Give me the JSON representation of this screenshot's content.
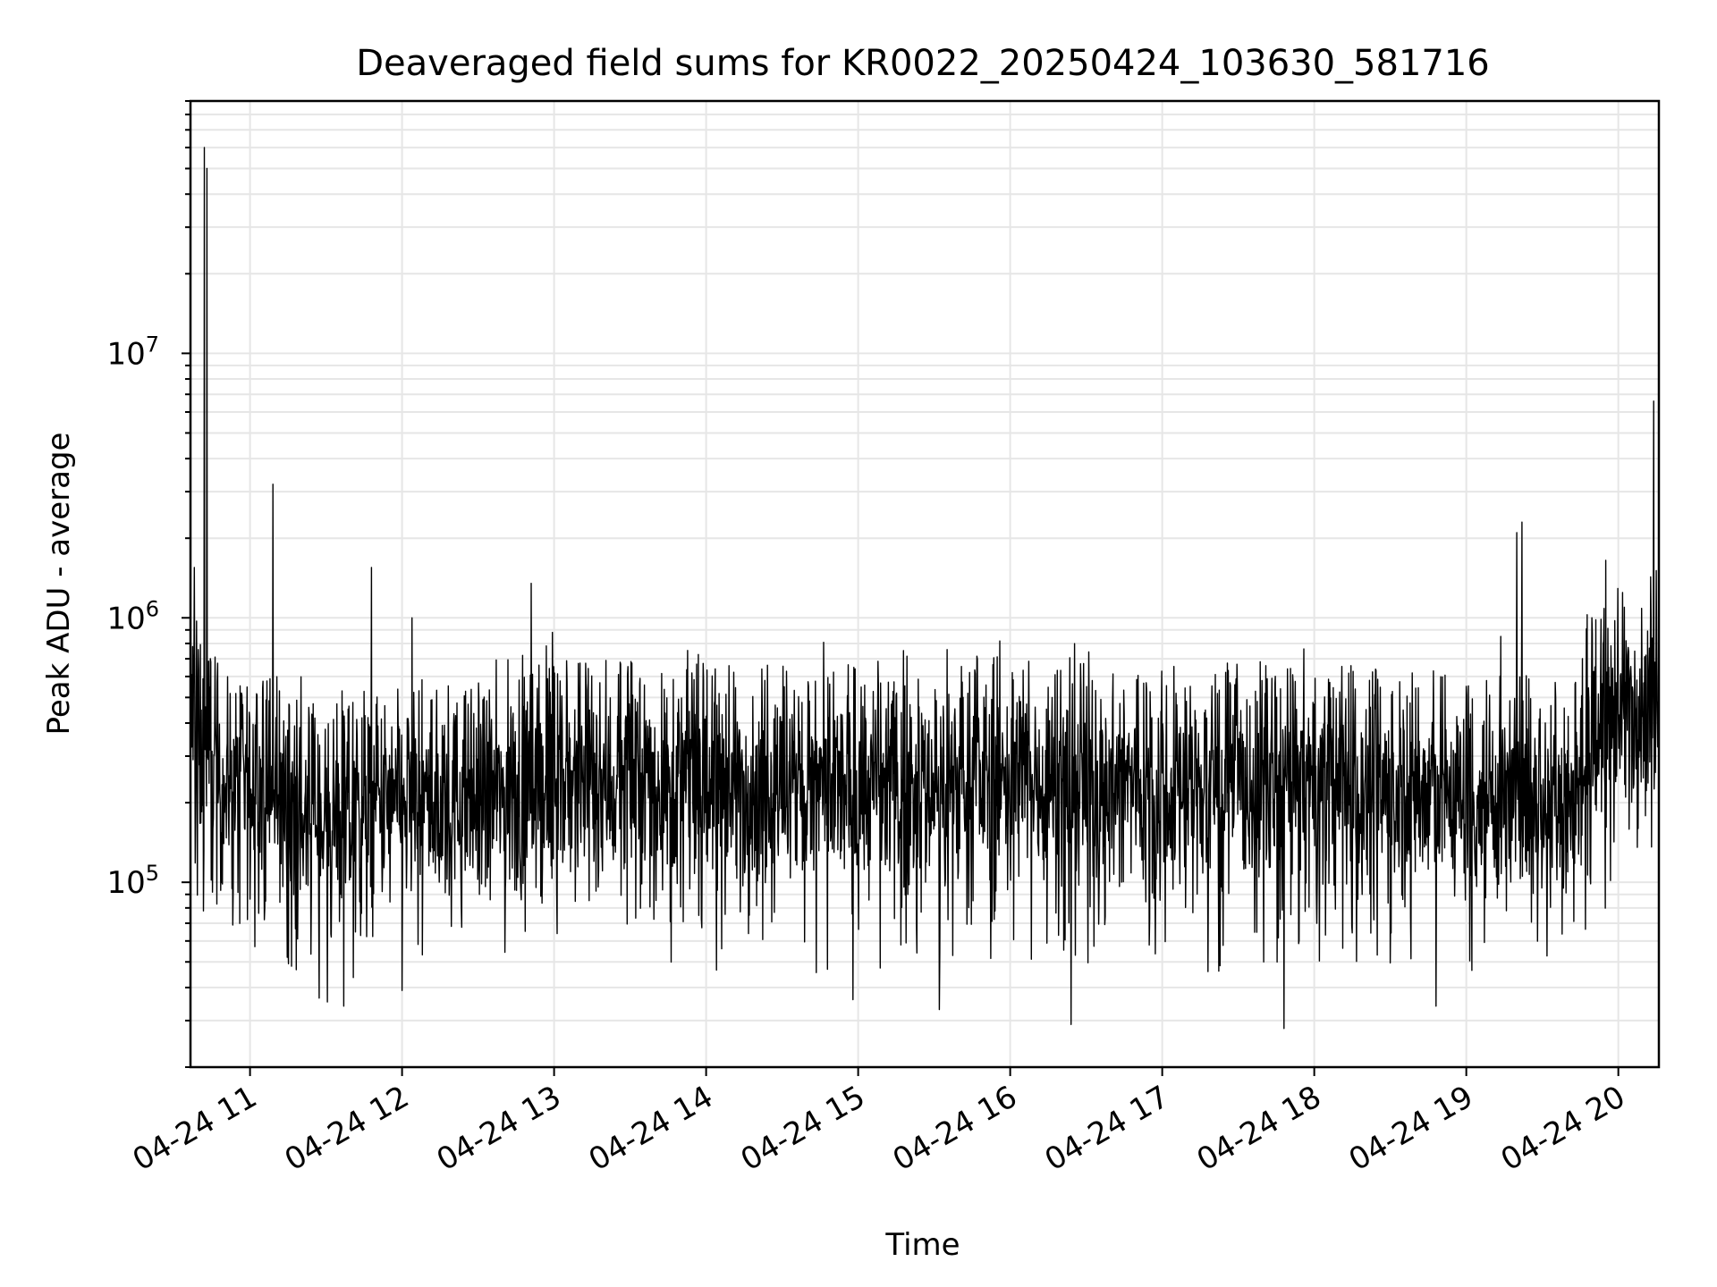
{
  "chart_data": {
    "type": "line",
    "title": "Deaveraged field sums for KR0022_20250424_103630_581716",
    "xlabel": "Time",
    "ylabel": "Peak ADU - average",
    "x_axis": {
      "kind": "time",
      "range": [
        "04-24 10:36:30",
        "04-24 20:16"
      ],
      "ticks": [
        "04-24 11",
        "04-24 12",
        "04-24 13",
        "04-24 14",
        "04-24 15",
        "04-24 16",
        "04-24 17",
        "04-24 18",
        "04-24 19",
        "04-24 20"
      ]
    },
    "y_axis": {
      "scale": "log",
      "range": [
        20000,
        90000000
      ],
      "ticks": [
        {
          "base": "10",
          "exp": "5"
        },
        {
          "base": "10",
          "exp": "6"
        },
        {
          "base": "10",
          "exp": "7"
        }
      ]
    },
    "grid": true,
    "legend": "none",
    "line_color": "#000000",
    "grid_color": "#e6e6e6",
    "series": [
      {
        "baseline": [
          {
            "x": "04-24 10:36",
            "y": 450000
          },
          {
            "x": "04-24 10:45",
            "y": 250000
          },
          {
            "x": "04-24 11:00",
            "y": 230000
          },
          {
            "x": "04-24 11:30",
            "y": 170000
          },
          {
            "x": "04-24 12:00",
            "y": 190000
          },
          {
            "x": "04-24 12:30",
            "y": 200000
          },
          {
            "x": "04-24 13:00",
            "y": 240000
          },
          {
            "x": "04-24 14:00",
            "y": 230000
          },
          {
            "x": "04-24 15:00",
            "y": 220000
          },
          {
            "x": "04-24 16:00",
            "y": 250000
          },
          {
            "x": "04-24 17:00",
            "y": 230000
          },
          {
            "x": "04-24 18:00",
            "y": 230000
          },
          {
            "x": "04-24 19:00",
            "y": 210000
          },
          {
            "x": "04-24 19:45",
            "y": 210000
          },
          {
            "x": "04-24 19:47",
            "y": 320000
          },
          {
            "x": "04-24 20:00",
            "y": 450000
          },
          {
            "x": "04-24 20:16",
            "y": 520000
          }
        ],
        "spikes": [
          {
            "x": "04-24 10:38",
            "y": 1550000
          },
          {
            "x": "04-24 10:42",
            "y": 60000000
          },
          {
            "x": "04-24 10:43",
            "y": 50000000
          },
          {
            "x": "04-24 11:09",
            "y": 3200000
          },
          {
            "x": "04-24 11:48",
            "y": 1550000
          },
          {
            "x": "04-24 12:04",
            "y": 1000000
          },
          {
            "x": "04-24 12:51",
            "y": 1350000
          },
          {
            "x": "04-24 19:20",
            "y": 2100000
          },
          {
            "x": "04-24 19:22",
            "y": 2300000
          },
          {
            "x": "04-24 19:55",
            "y": 1650000
          },
          {
            "x": "04-24 20:14",
            "y": 6600000
          },
          {
            "x": "04-24 20:16",
            "y": 3200000
          }
        ],
        "dips": [
          {
            "x": "04-24 11:37",
            "y": 34000
          },
          {
            "x": "04-24 15:32",
            "y": 33000
          },
          {
            "x": "04-24 16:24",
            "y": 29000
          },
          {
            "x": "04-24 17:48",
            "y": 28000
          },
          {
            "x": "04-24 18:48",
            "y": 34000
          },
          {
            "x": "04-24 14:58",
            "y": 36000
          },
          {
            "x": "04-24 12:00",
            "y": 39000
          }
        ]
      }
    ]
  }
}
